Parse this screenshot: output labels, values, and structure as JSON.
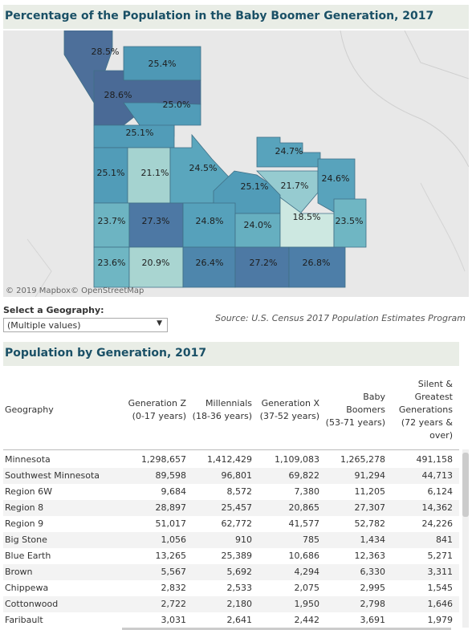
{
  "map": {
    "title": "Percentage of the Population in the Baby Boomer Generation, 2017",
    "credit": "© 2019 Mapbox© OpenStreetMap",
    "regions": [
      {
        "label": "28.5%",
        "value": 28.5,
        "color": "#4d6f9a"
      },
      {
        "label": "25.4%",
        "value": 25.4,
        "color": "#4e98b5"
      },
      {
        "label": "28.6%",
        "value": 28.6,
        "color": "#4a6a96"
      },
      {
        "label": "25.0%",
        "value": 25.0,
        "color": "#519cb8"
      },
      {
        "label": "25.1%",
        "value": 25.1,
        "color": "#519cb8"
      },
      {
        "label": "25.1%",
        "value": 25.1,
        "color": "#519cb8"
      },
      {
        "label": "21.1%",
        "value": 21.1,
        "color": "#a5d3d0"
      },
      {
        "label": "24.5%",
        "value": 24.5,
        "color": "#5aa6bd"
      },
      {
        "label": "24.7%",
        "value": 24.7,
        "color": "#58a3bc"
      },
      {
        "label": "25.1%",
        "value": 25.1,
        "color": "#519cb8"
      },
      {
        "label": "21.7%",
        "value": 21.7,
        "color": "#96cbd0"
      },
      {
        "label": "24.6%",
        "value": 24.6,
        "color": "#58a3bc"
      },
      {
        "label": "23.7%",
        "value": 23.7,
        "color": "#6db4c2"
      },
      {
        "label": "27.3%",
        "value": 27.3,
        "color": "#4d78a4"
      },
      {
        "label": "24.8%",
        "value": 24.8,
        "color": "#56a1bb"
      },
      {
        "label": "24.0%",
        "value": 24.0,
        "color": "#66afc0"
      },
      {
        "label": "18.5%",
        "value": 18.5,
        "color": "#cde8e1"
      },
      {
        "label": "23.5%",
        "value": 23.5,
        "color": "#6fb6c3"
      },
      {
        "label": "23.6%",
        "value": 23.6,
        "color": "#6fb6c3"
      },
      {
        "label": "20.9%",
        "value": 20.9,
        "color": "#a9d5d1"
      },
      {
        "label": "26.4%",
        "value": 26.4,
        "color": "#4e86ac"
      },
      {
        "label": "27.2%",
        "value": 27.2,
        "color": "#4d79a4"
      },
      {
        "label": "26.8%",
        "value": 26.8,
        "color": "#4d7ea8"
      }
    ]
  },
  "filter": {
    "label": "Select a Geography:",
    "value": "(Multiple values)"
  },
  "source": "Source: U.S. Census 2017 Population Estimates Program",
  "table": {
    "title": "Population by Generation, 2017",
    "headers": {
      "geo": [
        "Geography"
      ],
      "genz": [
        "Generation Z",
        "(0-17 years)"
      ],
      "mill": [
        "Millennials",
        "(18-36 years)"
      ],
      "genx": [
        "Generation X",
        "(37-52 years)"
      ],
      "boom": [
        "Baby",
        "Boomers",
        "(53-71 years)"
      ],
      "silent": [
        "Silent &",
        "Greatest",
        "Generations",
        "(72 years &",
        "over)"
      ]
    },
    "rows": [
      [
        "Minnesota",
        "1,298,657",
        "1,412,429",
        "1,109,083",
        "1,265,278",
        "491,158"
      ],
      [
        "Southwest Minnesota",
        "89,598",
        "96,801",
        "69,822",
        "91,294",
        "44,713"
      ],
      [
        "Region 6W",
        "9,684",
        "8,572",
        "7,380",
        "11,205",
        "6,124"
      ],
      [
        "Region 8",
        "28,897",
        "25,457",
        "20,865",
        "27,307",
        "14,362"
      ],
      [
        "Region 9",
        "51,017",
        "62,772",
        "41,577",
        "52,782",
        "24,226"
      ],
      [
        "Big Stone",
        "1,056",
        "910",
        "785",
        "1,434",
        "841"
      ],
      [
        "Blue Earth",
        "13,265",
        "25,389",
        "10,686",
        "12,363",
        "5,271"
      ],
      [
        "Brown",
        "5,567",
        "5,692",
        "4,294",
        "6,330",
        "3,311"
      ],
      [
        "Chippewa",
        "2,832",
        "2,533",
        "2,075",
        "2,995",
        "1,545"
      ],
      [
        "Cottonwood",
        "2,722",
        "2,180",
        "1,950",
        "2,798",
        "1,646"
      ],
      [
        "Faribault",
        "3,031",
        "2,641",
        "2,442",
        "3,691",
        "1,979"
      ]
    ]
  }
}
